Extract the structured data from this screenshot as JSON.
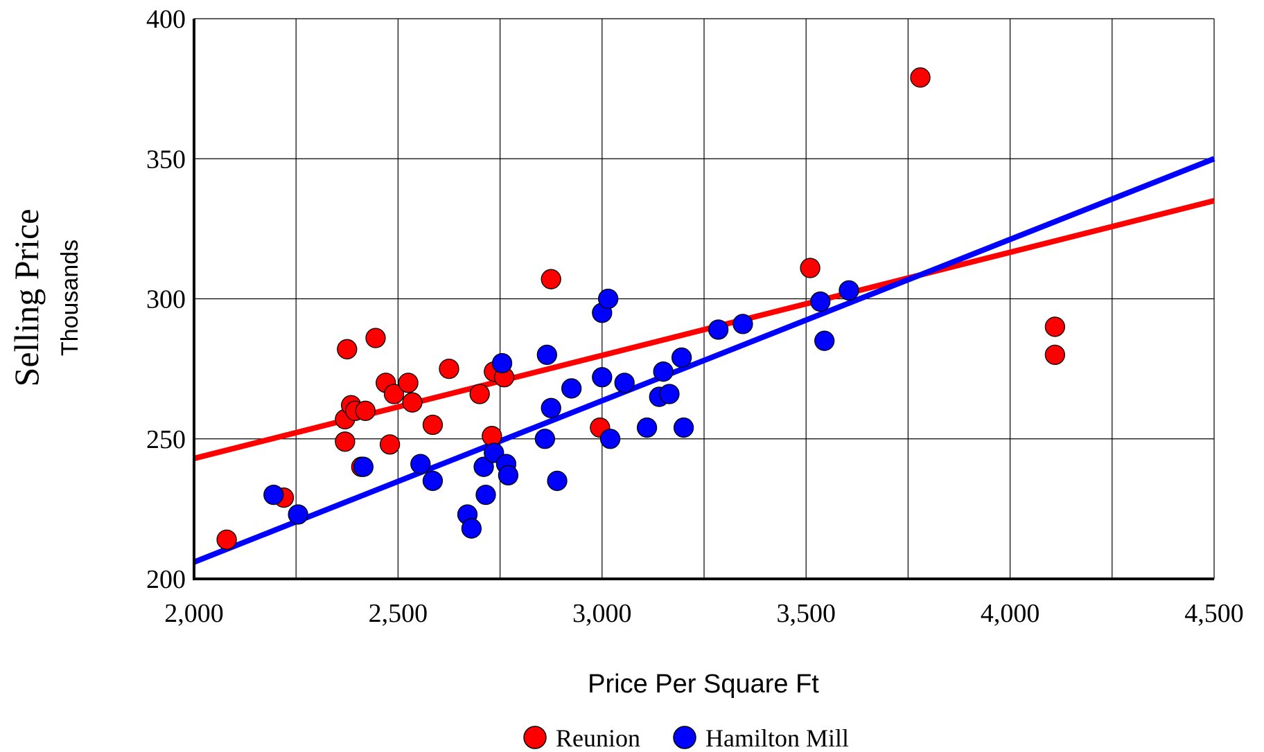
{
  "chart_data": {
    "type": "scatter",
    "title": "",
    "ylabel": "Selling Price",
    "ylabel_sub": "Thousands",
    "xlabel": "Price Per Square Ft",
    "xlim": [
      2000,
      4500
    ],
    "ylim": [
      200,
      400
    ],
    "x_ticks": [
      2000,
      2500,
      3000,
      3500,
      4000,
      4500
    ],
    "x_tick_labels": [
      "2,000",
      "2,500",
      "3,000",
      "3,500",
      "4,000",
      "4,500"
    ],
    "y_ticks": [
      200,
      250,
      300,
      350,
      400
    ],
    "y_tick_labels": [
      "200",
      "250",
      "300",
      "350",
      "400"
    ],
    "x_grid_lines": [
      2000,
      2250,
      2500,
      2750,
      3000,
      3250,
      3500,
      3750,
      4000,
      4250,
      4500
    ],
    "grid": true,
    "legend_position": "bottom-center",
    "series": [
      {
        "name": "Reunion",
        "color": "#ff0000",
        "points": [
          [
            2080,
            214
          ],
          [
            2220,
            229
          ],
          [
            2370,
            257
          ],
          [
            2370,
            249
          ],
          [
            2375,
            282
          ],
          [
            2385,
            262
          ],
          [
            2395,
            260
          ],
          [
            2410,
            240
          ],
          [
            2420,
            260
          ],
          [
            2445,
            286
          ],
          [
            2470,
            270
          ],
          [
            2480,
            248
          ],
          [
            2490,
            266
          ],
          [
            2525,
            270
          ],
          [
            2535,
            263
          ],
          [
            2585,
            255
          ],
          [
            2625,
            275
          ],
          [
            2700,
            266
          ],
          [
            2730,
            251
          ],
          [
            2735,
            274
          ],
          [
            2760,
            272
          ],
          [
            2875,
            307
          ],
          [
            2995,
            254
          ],
          [
            3510,
            311
          ],
          [
            3780,
            379
          ],
          [
            4110,
            290
          ],
          [
            4110,
            280
          ]
        ],
        "trendline": [
          [
            2000,
            243
          ],
          [
            4500,
            335
          ]
        ]
      },
      {
        "name": "Hamilton Mill",
        "color": "#0000ff",
        "points": [
          [
            2195,
            230
          ],
          [
            2255,
            223
          ],
          [
            2415,
            240
          ],
          [
            2555,
            241
          ],
          [
            2585,
            235
          ],
          [
            2670,
            223
          ],
          [
            2680,
            218
          ],
          [
            2710,
            240
          ],
          [
            2715,
            230
          ],
          [
            2735,
            245
          ],
          [
            2755,
            277
          ],
          [
            2765,
            241
          ],
          [
            2770,
            237
          ],
          [
            2860,
            250
          ],
          [
            2865,
            280
          ],
          [
            2875,
            261
          ],
          [
            2890,
            235
          ],
          [
            2925,
            268
          ],
          [
            3000,
            295
          ],
          [
            3000,
            272
          ],
          [
            3015,
            300
          ],
          [
            3020,
            250
          ],
          [
            3055,
            270
          ],
          [
            3110,
            254
          ],
          [
            3140,
            265
          ],
          [
            3150,
            274
          ],
          [
            3165,
            266
          ],
          [
            3195,
            279
          ],
          [
            3200,
            254
          ],
          [
            3285,
            289
          ],
          [
            3345,
            291
          ],
          [
            3535,
            299
          ],
          [
            3545,
            285
          ],
          [
            3605,
            303
          ]
        ],
        "trendline": [
          [
            2000,
            206
          ],
          [
            4500,
            350
          ]
        ]
      }
    ]
  }
}
